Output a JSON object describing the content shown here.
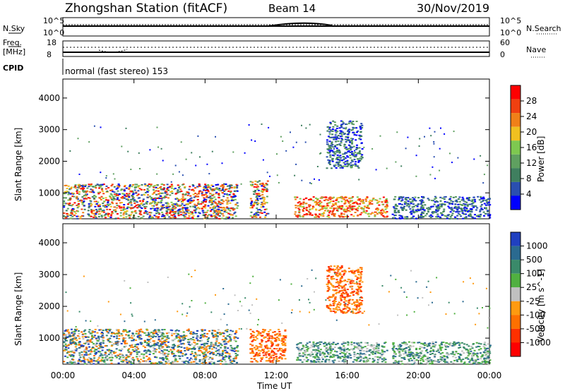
{
  "header": {
    "station": "Zhongshan Station (fitACF)",
    "beam": "Beam 14",
    "date": "30/Nov/2019"
  },
  "top_panels": {
    "noise_left_label": "N.Sky",
    "noise_right_label": "N.Search",
    "noise_ticks_left": [
      "10^5",
      "10^0"
    ],
    "noise_ticks_right": [
      "10^5",
      "10^0"
    ],
    "freq_label_line1": "Freq.",
    "freq_label_line2": "[MHz]",
    "freq_ticks": [
      "18",
      "8"
    ],
    "nave_label": "Nave",
    "nave_ticks": [
      "60",
      "0"
    ],
    "cpid_label": "CPID",
    "cpid_text": "normal (fast stereo) 153"
  },
  "colors": {
    "power_scale": [
      "#0000ff",
      "#2a4fb0",
      "#3f7f5f",
      "#5fa060",
      "#7ec850",
      "#f0c020",
      "#f08018",
      "#f04010",
      "#ff0000"
    ],
    "velocity_scale": [
      "#2040c0",
      "#2a6a90",
      "#3a8a6a",
      "#50b040",
      "#c0c0c0",
      "#ff9a10",
      "#ff7000",
      "#ff3000",
      "#ff0000"
    ]
  },
  "chart_data": [
    {
      "type": "heatmap",
      "title": "Power",
      "ylabel": "Slant Range [km]",
      "xlabel": "",
      "x_ticks": [
        "00:00",
        "04:00",
        "08:00",
        "12:00",
        "16:00",
        "20:00",
        "00:00"
      ],
      "y_ticks": [
        "1000",
        "2000",
        "3000",
        "4000"
      ],
      "ylim": [
        180,
        4600
      ],
      "colorbar_label": "Power [dB]",
      "colorbar_ticks": [
        "4",
        "8",
        "12",
        "16",
        "20",
        "24",
        "28"
      ],
      "regions": [
        {
          "x0": 0.0,
          "x1": 9.8,
          "y0": 200,
          "y1": 1300,
          "level": "mixed"
        },
        {
          "x0": 10.5,
          "x1": 11.5,
          "y0": 250,
          "y1": 1400,
          "level": "mixed"
        },
        {
          "x0": 13.0,
          "x1": 18.2,
          "y0": 250,
          "y1": 900,
          "level": "high"
        },
        {
          "x0": 14.8,
          "x1": 16.8,
          "y0": 1800,
          "y1": 3300,
          "level": "low"
        },
        {
          "x0": 18.5,
          "x1": 24.0,
          "y0": 200,
          "y1": 900,
          "level": "low"
        }
      ]
    },
    {
      "type": "heatmap",
      "title": "Velocity",
      "ylabel": "Slant Range [km]",
      "xlabel": "Time UT",
      "x_ticks": [
        "00:00",
        "04:00",
        "08:00",
        "12:00",
        "16:00",
        "20:00",
        "00:00"
      ],
      "y_ticks": [
        "1000",
        "2000",
        "3000",
        "4000"
      ],
      "ylim": [
        180,
        4600
      ],
      "colorbar_label": "Velocity [m s^-1]",
      "colorbar_ticks": [
        "1000",
        "500",
        "100",
        "25",
        "-25",
        "-100",
        "-500",
        "-1000"
      ],
      "regions": [
        {
          "x0": 0.0,
          "x1": 9.8,
          "y0": 200,
          "y1": 1300,
          "level": "mixed"
        },
        {
          "x0": 10.5,
          "x1": 12.5,
          "y0": 250,
          "y1": 1300,
          "level": "negative"
        },
        {
          "x0": 13.0,
          "x1": 18.2,
          "y0": 250,
          "y1": 900,
          "level": "positive"
        },
        {
          "x0": 14.8,
          "x1": 16.8,
          "y0": 1800,
          "y1": 3300,
          "level": "negative"
        },
        {
          "x0": 18.5,
          "x1": 24.0,
          "y0": 200,
          "y1": 900,
          "level": "positive"
        }
      ]
    }
  ]
}
